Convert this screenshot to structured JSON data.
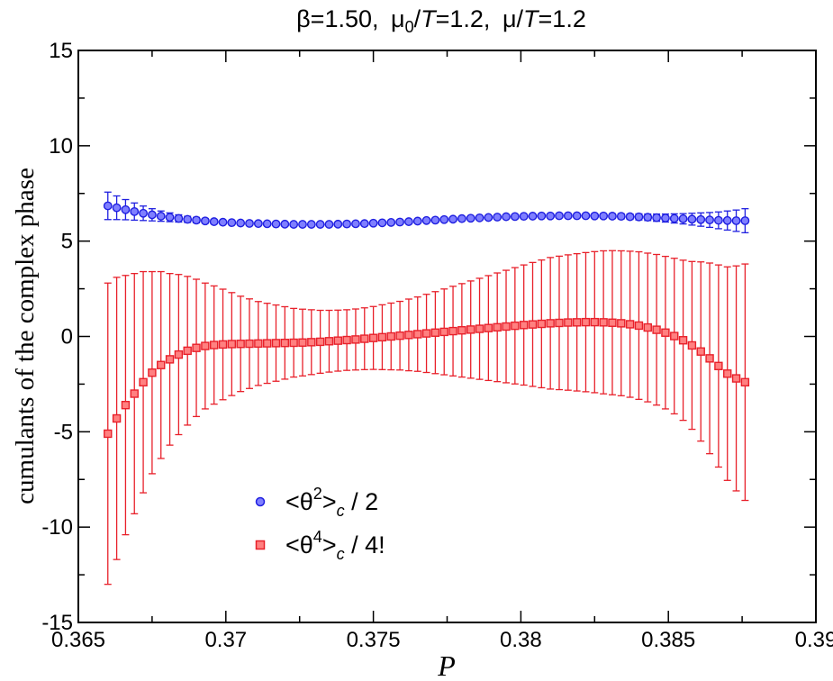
{
  "chart_data": {
    "type": "scatter",
    "title": {
      "beta": "β=1.50,",
      "mu": "μ",
      "mu0_sub": "0",
      "over_t": "/",
      "t": "T",
      "mu0_val": "=1.2,",
      "mu_val": "=1.2"
    },
    "xlabel": "P",
    "ylabel": "cumulants of the complex phase",
    "xlim": [
      0.365,
      0.39
    ],
    "ylim": [
      -15,
      15
    ],
    "x_ticks": [
      "0.365",
      "0.37",
      "0.375",
      "0.38",
      "0.385",
      "0.39"
    ],
    "y_ticks": [
      "-15",
      "-10",
      "-5",
      "0",
      "5",
      "10",
      "15"
    ],
    "legend_position": "bottom-left",
    "series": [
      {
        "name": "<θ²>c / 2",
        "color": "#1f1fe0",
        "marker": "circle",
        "legend": {
          "lt": "<θ",
          "sup": "2",
          "gt": ">",
          "sub": "c",
          "tail": " / 2"
        },
        "x": [
          0.366,
          0.3663,
          0.3666,
          0.3669,
          0.3672,
          0.3675,
          0.3678,
          0.3681,
          0.3684,
          0.3687,
          0.369,
          0.3693,
          0.3696,
          0.3699,
          0.3702,
          0.3705,
          0.3708,
          0.3711,
          0.3714,
          0.3717,
          0.372,
          0.3723,
          0.3726,
          0.3729,
          0.3732,
          0.3735,
          0.3738,
          0.3741,
          0.3744,
          0.3747,
          0.375,
          0.3753,
          0.3756,
          0.3759,
          0.3762,
          0.3765,
          0.3768,
          0.3771,
          0.3774,
          0.3777,
          0.378,
          0.3783,
          0.3786,
          0.3789,
          0.3792,
          0.3795,
          0.3798,
          0.3801,
          0.3804,
          0.3807,
          0.381,
          0.3813,
          0.3816,
          0.3819,
          0.3822,
          0.3825,
          0.3828,
          0.3831,
          0.3834,
          0.3837,
          0.384,
          0.3843,
          0.3846,
          0.3849,
          0.3852,
          0.3855,
          0.3858,
          0.3861,
          0.3864,
          0.3867,
          0.387,
          0.3873,
          0.3876
        ],
        "y": [
          6.85,
          6.75,
          6.65,
          6.55,
          6.46,
          6.38,
          6.31,
          6.25,
          6.19,
          6.14,
          6.1,
          6.06,
          6.02,
          5.99,
          5.97,
          5.95,
          5.93,
          5.92,
          5.91,
          5.9,
          5.89,
          5.88,
          5.88,
          5.88,
          5.88,
          5.88,
          5.89,
          5.9,
          5.91,
          5.92,
          5.94,
          5.96,
          5.98,
          6.0,
          6.02,
          6.05,
          6.08,
          6.1,
          6.13,
          6.15,
          6.18,
          6.2,
          6.22,
          6.24,
          6.26,
          6.28,
          6.29,
          6.3,
          6.31,
          6.32,
          6.32,
          6.33,
          6.33,
          6.33,
          6.33,
          6.32,
          6.32,
          6.31,
          6.3,
          6.28,
          6.27,
          6.25,
          6.23,
          6.21,
          6.19,
          6.17,
          6.15,
          6.13,
          6.11,
          6.09,
          6.08,
          6.07,
          6.07
        ],
        "err": [
          0.72,
          0.62,
          0.53,
          0.45,
          0.38,
          0.32,
          0.27,
          0.23,
          0.19,
          0.16,
          0.14,
          0.12,
          0.11,
          0.1,
          0.09,
          0.09,
          0.09,
          0.09,
          0.09,
          0.09,
          0.09,
          0.09,
          0.09,
          0.09,
          0.09,
          0.09,
          0.09,
          0.09,
          0.09,
          0.09,
          0.09,
          0.09,
          0.09,
          0.09,
          0.09,
          0.09,
          0.09,
          0.09,
          0.09,
          0.09,
          0.09,
          0.09,
          0.09,
          0.09,
          0.09,
          0.09,
          0.09,
          0.09,
          0.09,
          0.09,
          0.09,
          0.09,
          0.09,
          0.09,
          0.1,
          0.1,
          0.11,
          0.12,
          0.13,
          0.14,
          0.16,
          0.17,
          0.19,
          0.21,
          0.24,
          0.27,
          0.31,
          0.35,
          0.39,
          0.44,
          0.5,
          0.56,
          0.63
        ]
      },
      {
        "name": "<θ⁴>c / 4!",
        "color": "#e8202a",
        "marker": "square",
        "legend": {
          "lt": "<θ",
          "sup": "4",
          "gt": ">",
          "sub": "c",
          "tail": " / 4!"
        },
        "x": [
          0.366,
          0.3663,
          0.3666,
          0.3669,
          0.3672,
          0.3675,
          0.3678,
          0.3681,
          0.3684,
          0.3687,
          0.369,
          0.3693,
          0.3696,
          0.3699,
          0.3702,
          0.3705,
          0.3708,
          0.3711,
          0.3714,
          0.3717,
          0.372,
          0.3723,
          0.3726,
          0.3729,
          0.3732,
          0.3735,
          0.3738,
          0.3741,
          0.3744,
          0.3747,
          0.375,
          0.3753,
          0.3756,
          0.3759,
          0.3762,
          0.3765,
          0.3768,
          0.3771,
          0.3774,
          0.3777,
          0.378,
          0.3783,
          0.3786,
          0.3789,
          0.3792,
          0.3795,
          0.3798,
          0.3801,
          0.3804,
          0.3807,
          0.381,
          0.3813,
          0.3816,
          0.3819,
          0.3822,
          0.3825,
          0.3828,
          0.3831,
          0.3834,
          0.3837,
          0.384,
          0.3843,
          0.3846,
          0.3849,
          0.3852,
          0.3855,
          0.3858,
          0.3861,
          0.3864,
          0.3867,
          0.387,
          0.3873,
          0.3876
        ],
        "y": [
          -5.1,
          -4.3,
          -3.6,
          -3.0,
          -2.4,
          -1.9,
          -1.5,
          -1.2,
          -0.95,
          -0.75,
          -0.6,
          -0.5,
          -0.45,
          -0.42,
          -0.4,
          -0.39,
          -0.38,
          -0.37,
          -0.36,
          -0.35,
          -0.34,
          -0.33,
          -0.32,
          -0.3,
          -0.28,
          -0.25,
          -0.22,
          -0.19,
          -0.16,
          -0.12,
          -0.08,
          -0.04,
          0.0,
          0.04,
          0.08,
          0.12,
          0.16,
          0.2,
          0.24,
          0.28,
          0.32,
          0.36,
          0.4,
          0.44,
          0.48,
          0.52,
          0.56,
          0.6,
          0.63,
          0.66,
          0.69,
          0.71,
          0.73,
          0.74,
          0.75,
          0.75,
          0.74,
          0.72,
          0.69,
          0.64,
          0.57,
          0.47,
          0.35,
          0.2,
          0.02,
          -0.2,
          -0.47,
          -0.79,
          -1.15,
          -1.55,
          -1.95,
          -2.2,
          -2.4
        ],
        "err": [
          7.9,
          7.4,
          6.8,
          6.3,
          5.8,
          5.3,
          4.9,
          4.5,
          4.2,
          3.9,
          3.6,
          3.3,
          3.1,
          2.9,
          2.7,
          2.5,
          2.35,
          2.2,
          2.1,
          2.0,
          1.9,
          1.8,
          1.75,
          1.7,
          1.65,
          1.62,
          1.6,
          1.59,
          1.6,
          1.62,
          1.65,
          1.7,
          1.75,
          1.8,
          1.88,
          1.95,
          2.05,
          2.15,
          2.25,
          2.35,
          2.45,
          2.55,
          2.65,
          2.75,
          2.85,
          2.95,
          3.05,
          3.15,
          3.25,
          3.35,
          3.45,
          3.5,
          3.55,
          3.6,
          3.65,
          3.7,
          3.75,
          3.78,
          3.8,
          3.83,
          3.87,
          3.9,
          3.95,
          4.0,
          4.08,
          4.2,
          4.4,
          4.7,
          5.0,
          5.3,
          5.6,
          5.9,
          6.2
        ]
      }
    ]
  }
}
